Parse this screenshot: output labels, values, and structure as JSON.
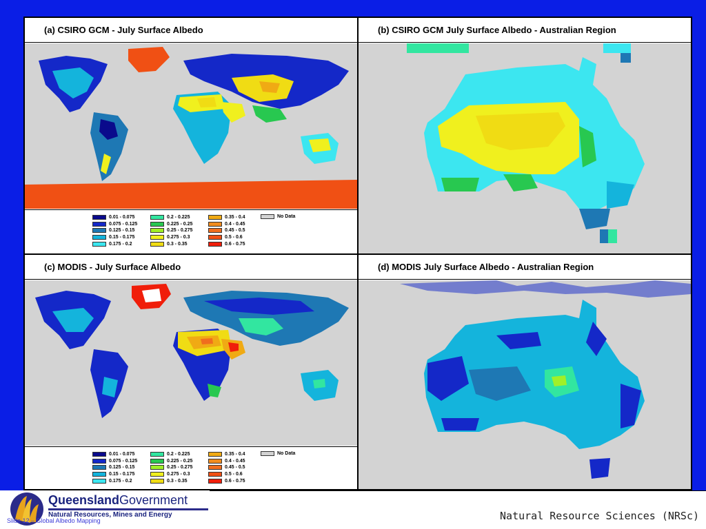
{
  "panels": {
    "a": {
      "title": "(a) CSIRO GCM - July Surface Albedo"
    },
    "b": {
      "title": "(b) CSIRO GCM July Surface Albedo - Australian Region"
    },
    "c": {
      "title": "(c) MODIS - July Surface Albedo"
    },
    "d": {
      "title": "(d) MODIS July Surface Albedo - Australian Region"
    }
  },
  "legend": {
    "items": [
      {
        "label": "0.01 - 0.075",
        "color": "#0a0a8c"
      },
      {
        "label": "0.075 - 0.125",
        "color": "#1428c8"
      },
      {
        "label": "0.125 - 0.15",
        "color": "#1e78b4"
      },
      {
        "label": "0.15 - 0.175",
        "color": "#14b4dc"
      },
      {
        "label": "0.175 - 0.2",
        "color": "#3ce6f0"
      },
      {
        "label": "0.2 - 0.225",
        "color": "#32e6a0"
      },
      {
        "label": "0.225 - 0.25",
        "color": "#28c850"
      },
      {
        "label": "0.25 - 0.275",
        "color": "#a0f028"
      },
      {
        "label": "0.275 - 0.3",
        "color": "#f0f01e"
      },
      {
        "label": "0.3 - 0.35",
        "color": "#f0dc14"
      },
      {
        "label": "0.35 - 0.4",
        "color": "#f0aa14"
      },
      {
        "label": "0.4 - 0.45",
        "color": "#f08c1e"
      },
      {
        "label": "0.45 - 0.5",
        "color": "#f06e1e"
      },
      {
        "label": "0.5 - 0.6",
        "color": "#f05014"
      },
      {
        "label": "0.6 - 0.75",
        "color": "#f01e0a"
      }
    ],
    "nodata_label": "No Data",
    "nodata_color": "#d3d3d3"
  },
  "footer": {
    "org_bold": "Queensland",
    "org_light": "Government",
    "department": "Natural Resources, Mines and Energy",
    "slide_label": "Slide 12 – Global Albedo Mapping",
    "unit": "Natural Resource Sciences (NRSc)"
  }
}
